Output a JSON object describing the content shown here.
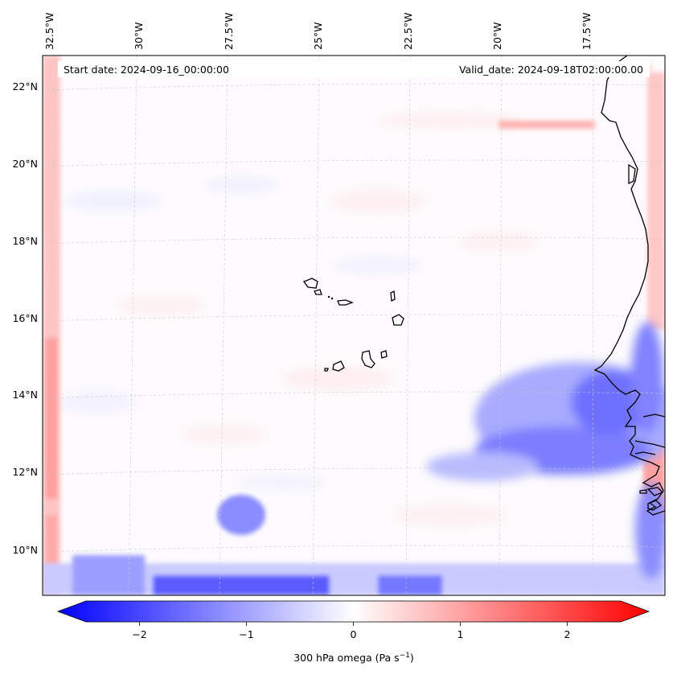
{
  "header": {
    "start_date": "Start date: 2024-09-16_00:00:00",
    "valid_date": "Valid_date: 2024-09-18T02:00:00.00"
  },
  "map": {
    "top_labels": [
      "32.5°W",
      "30°W",
      "27.5°W",
      "25°W",
      "22.5°W",
      "20°W",
      "17.5°W"
    ],
    "left_labels": [
      "22°N",
      "20°N",
      "18°N",
      "16°N",
      "14°N",
      "12°N",
      "10°N"
    ],
    "colors": {
      "negative": "#0000ff",
      "positive": "#ff0000",
      "neutral": "#ffffff",
      "coast": "#000000"
    }
  },
  "colorbar": {
    "ticks": [
      "−2",
      "−1",
      "0",
      "1",
      "2"
    ],
    "tick_values": [
      -2,
      -1,
      0,
      1,
      2
    ],
    "range": [
      -2.5,
      2.5
    ],
    "label_main": "300 hPa omega (Pa s",
    "label_sup": "−1",
    "label_close": ")"
  }
}
